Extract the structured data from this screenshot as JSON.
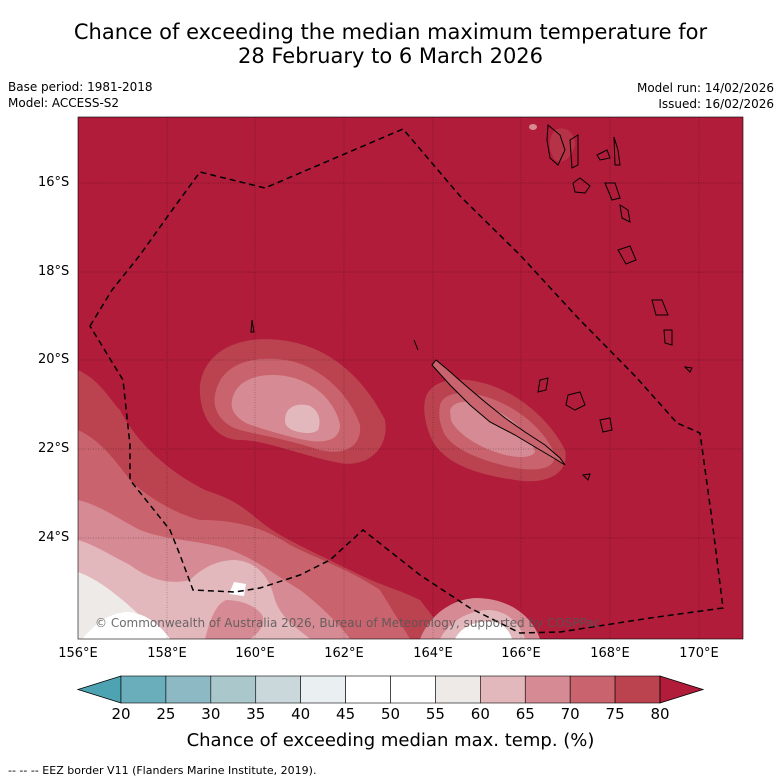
{
  "title": {
    "line1": "Chance of exceeding the median maximum temperature for",
    "line2": "28 February to 6 March 2026"
  },
  "meta": {
    "base_period": "Base period: 1981-2018",
    "model": "Model: ACCESS-S2",
    "model_run": "Model run: 14/02/2026",
    "issued": "Issued: 16/02/2026"
  },
  "axes": {
    "lat_labels": [
      "16°S",
      "18°S",
      "20°S",
      "22°S",
      "24°S"
    ],
    "lon_labels": [
      "156°E",
      "158°E",
      "160°E",
      "162°E",
      "164°E",
      "166°E",
      "168°E",
      "170°E"
    ]
  },
  "copyright": "© Commonwealth of Australia 2026, Bureau of Meteorology, supported by COSPPac",
  "colorbar": {
    "ticks": [
      "20",
      "25",
      "30",
      "35",
      "40",
      "45",
      "50",
      "55",
      "60",
      "65",
      "70",
      "75",
      "80"
    ],
    "colors": [
      "#4da3b1",
      "#6aaebc",
      "#8cb9c4",
      "#aac7cc",
      "#cad8dc",
      "#eaf0f2",
      "#ffffff",
      "#ffffff",
      "#eeeae8",
      "#e3b8bd",
      "#d68b94",
      "#c9646e",
      "#bb4350",
      "#b01c3a"
    ],
    "title": "Chance of exceeding median max. temp. (%)"
  },
  "legend": {
    "eez": "-- -- -- EEZ border V11 (Flanders Marine Institute, 2019)."
  }
}
